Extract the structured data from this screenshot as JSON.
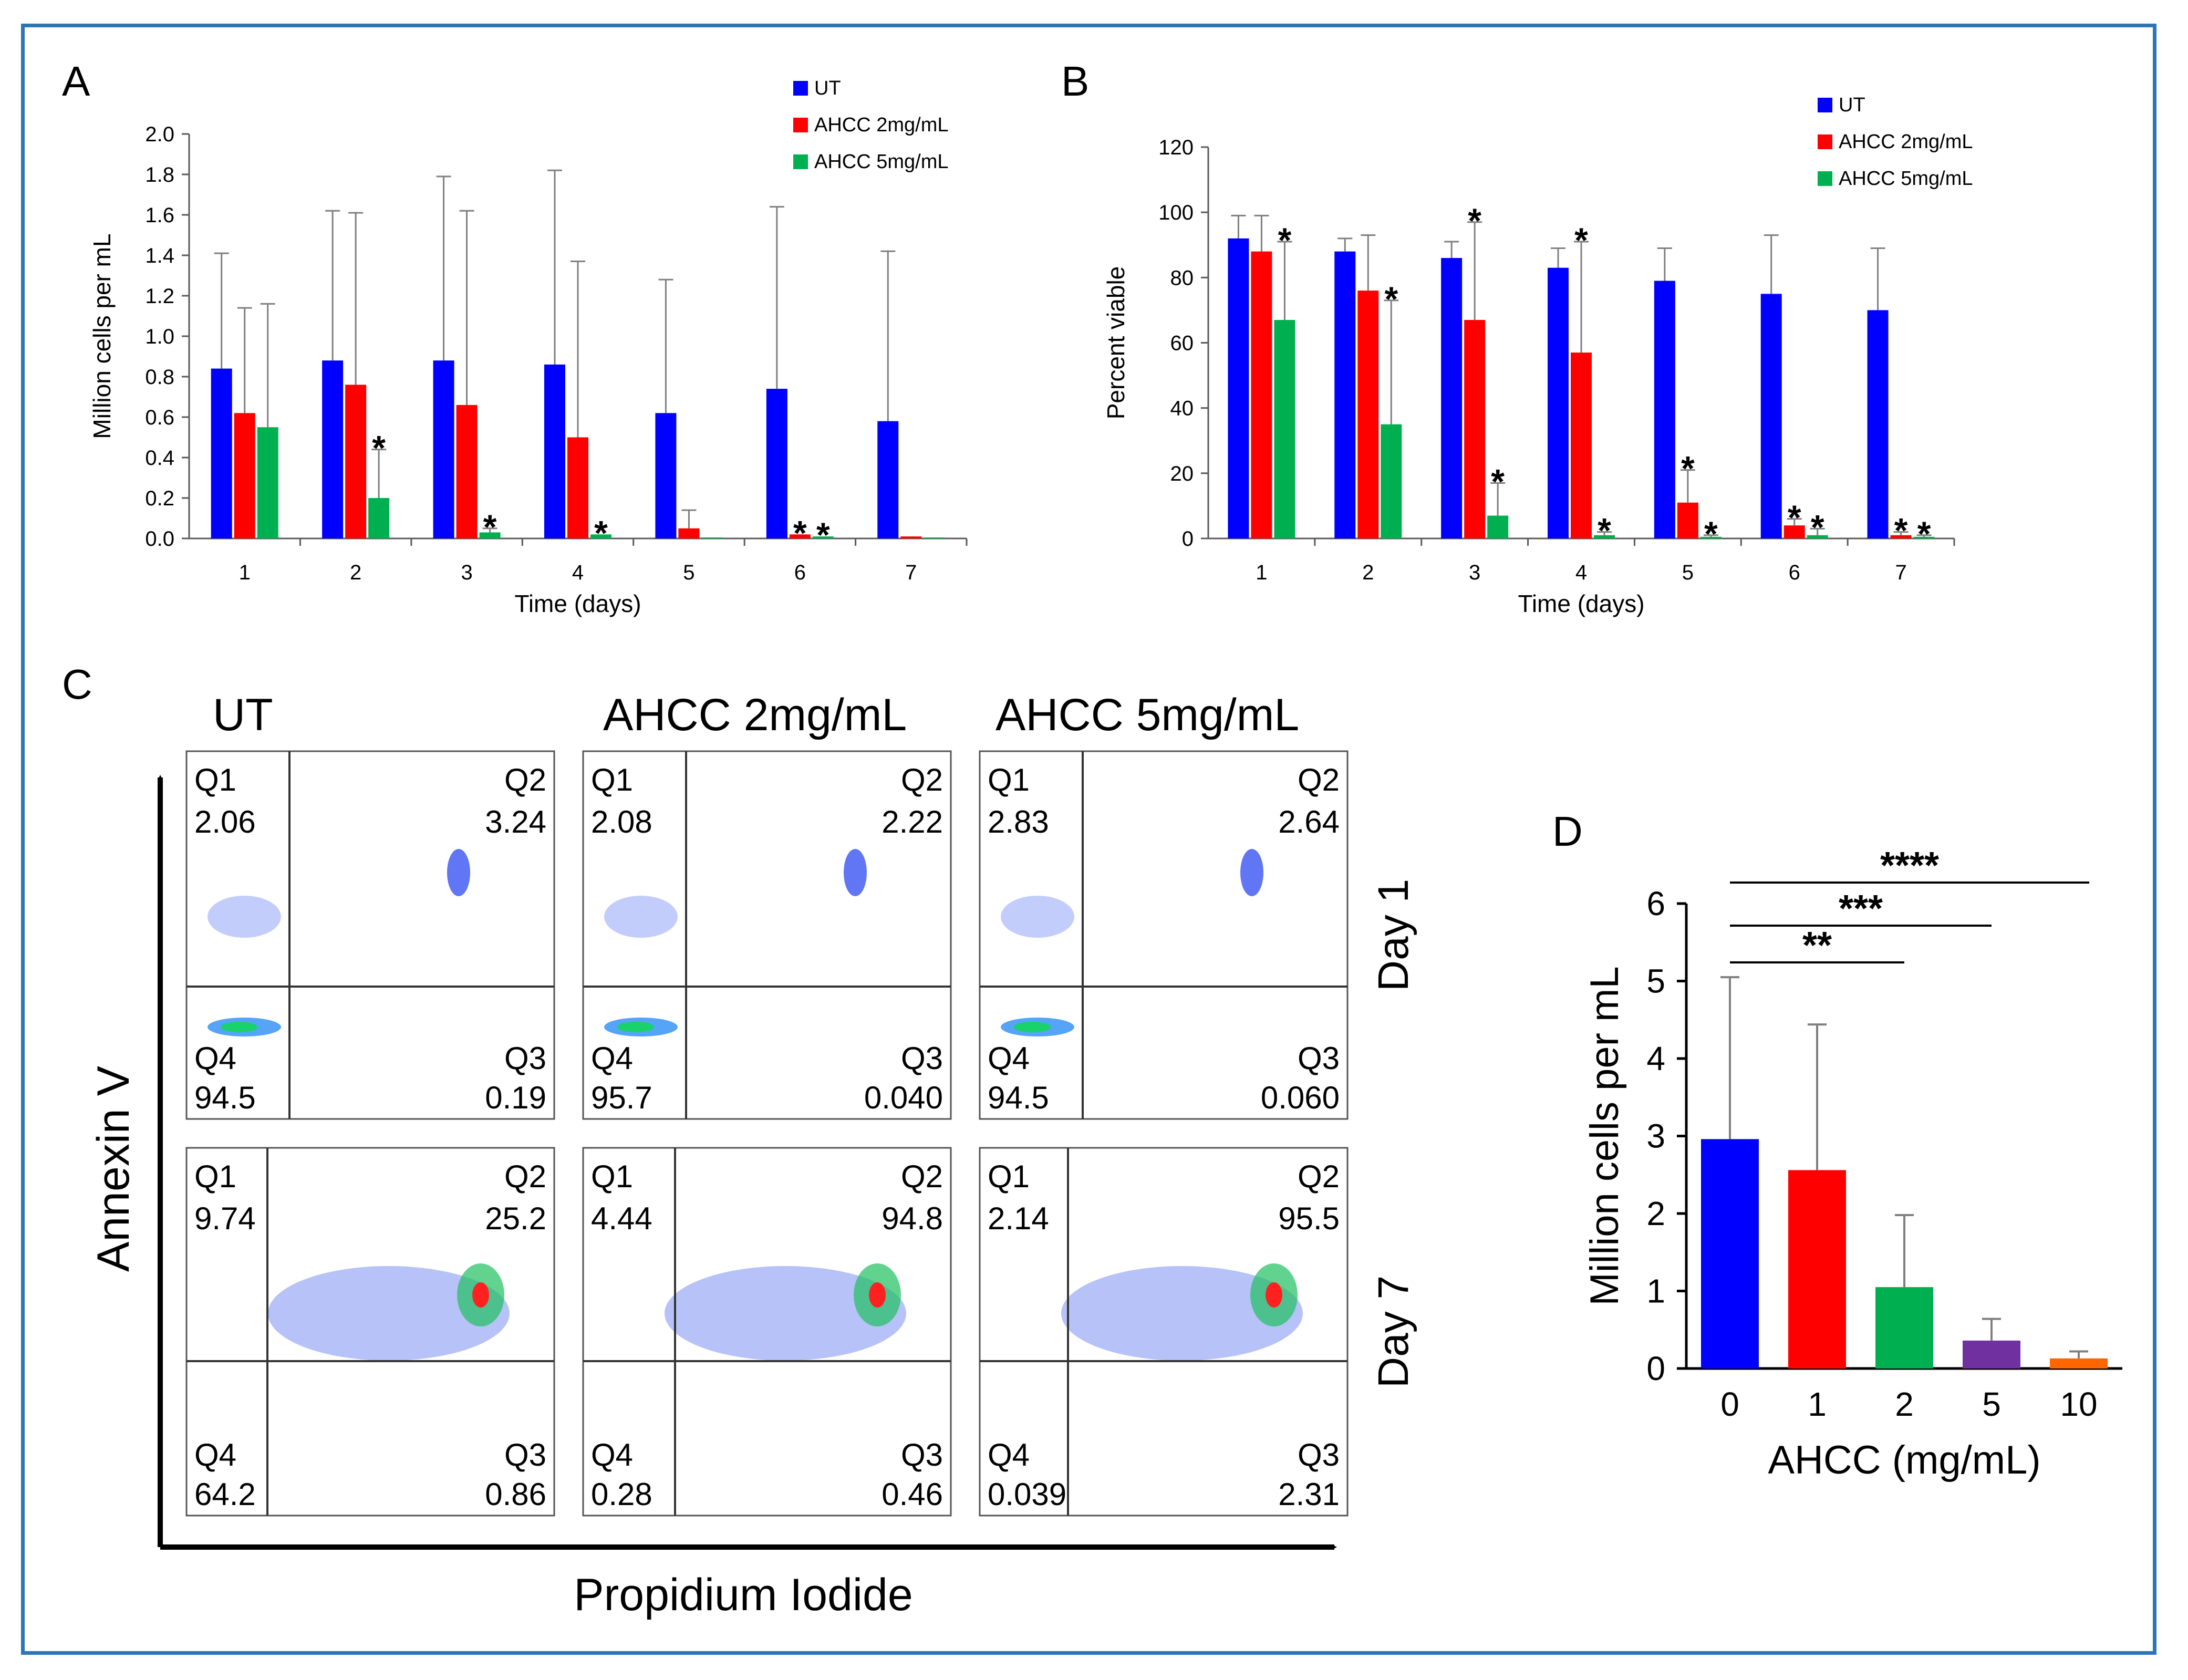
{
  "colors": {
    "ut": "#0000ff",
    "ahcc2": "#ff0000",
    "ahcc5": "#00b050",
    "d_0": "#0000ff",
    "d_1": "#ff0000",
    "d_2": "#00b050",
    "d_5": "#7030a0",
    "d_10": "#ff6600",
    "frame": "#2e75b6"
  },
  "panel_labels": {
    "a": "A",
    "b": "B",
    "c": "C",
    "d": "D"
  },
  "chart_data": [
    {
      "id": "A",
      "type": "bar",
      "categories": [
        "1",
        "2",
        "3",
        "4",
        "5",
        "6",
        "7"
      ],
      "xlabel": "Time (days)",
      "ylabel": "Million cells per mL",
      "ylim": [
        0,
        2.0
      ],
      "yticks": [
        "0.0",
        "0.2",
        "0.4",
        "0.6",
        "0.8",
        "1.0",
        "1.2",
        "1.4",
        "1.6",
        "1.8",
        "2.0"
      ],
      "series": [
        {
          "name": "UT",
          "values": [
            0.84,
            0.88,
            0.88,
            0.86,
            0.62,
            0.74,
            0.58
          ],
          "errors": [
            0.57,
            0.74,
            0.91,
            0.96,
            0.66,
            0.9,
            0.84
          ],
          "stars": [
            "",
            "",
            "",
            "",
            "",
            "",
            ""
          ]
        },
        {
          "name": "AHCC 2mg/mL",
          "values": [
            0.62,
            0.76,
            0.66,
            0.5,
            0.05,
            0.02,
            0.01
          ],
          "errors": [
            0.52,
            0.85,
            0.96,
            0.87,
            0.09,
            0.0,
            0.0
          ],
          "stars": [
            "",
            "",
            "",
            "",
            "",
            "*",
            ""
          ]
        },
        {
          "name": "AHCC 5mg/mL",
          "values": [
            0.55,
            0.2,
            0.03,
            0.02,
            0.005,
            0.01,
            0.005
          ],
          "errors": [
            0.61,
            0.24,
            0.02,
            0.0,
            0.0,
            0.0,
            0.0
          ],
          "stars": [
            "",
            "*",
            "*",
            "*",
            "",
            "*",
            ""
          ]
        }
      ]
    },
    {
      "id": "B",
      "type": "bar",
      "categories": [
        "1",
        "2",
        "3",
        "4",
        "5",
        "6",
        "7"
      ],
      "xlabel": "Time (days)",
      "ylabel": "Percent viable",
      "ylim": [
        0,
        120
      ],
      "yticks": [
        "0",
        "20",
        "40",
        "60",
        "80",
        "100",
        "120"
      ],
      "series": [
        {
          "name": "UT",
          "values": [
            92,
            88,
            86,
            83,
            79,
            75,
            70
          ],
          "errors": [
            7,
            4,
            5,
            6,
            10,
            18,
            19
          ],
          "stars": [
            "",
            "",
            "",
            "",
            "",
            "",
            ""
          ]
        },
        {
          "name": "AHCC 2mg/mL",
          "values": [
            88,
            76,
            67,
            57,
            11,
            4,
            1
          ],
          "errors": [
            11,
            17,
            30,
            34,
            10,
            2,
            1
          ],
          "stars": [
            "",
            "",
            "*",
            "*",
            "*",
            "*",
            "*"
          ]
        },
        {
          "name": "AHCC 5mg/mL",
          "values": [
            67,
            35,
            7,
            1,
            0.5,
            1,
            0.5
          ],
          "errors": [
            24,
            38,
            10,
            1,
            0.5,
            2,
            0.5
          ],
          "stars": [
            "*",
            "*",
            "*",
            "*",
            "*",
            "*",
            "*"
          ]
        }
      ]
    },
    {
      "id": "D",
      "type": "bar",
      "categories": [
        "0",
        "1",
        "2",
        "5",
        "10"
      ],
      "xlabel": "AHCC (mg/mL)",
      "ylabel": "Million cells per mL",
      "ylim": [
        0,
        6
      ],
      "yticks": [
        "0",
        "1",
        "2",
        "3",
        "4",
        "5",
        "6"
      ],
      "values": [
        2.96,
        2.56,
        1.05,
        0.36,
        0.13
      ],
      "errors": [
        2.09,
        1.88,
        0.93,
        0.28,
        0.09
      ],
      "significance": [
        {
          "from": "0",
          "to": "2",
          "label": "**"
        },
        {
          "from": "0",
          "to": "5",
          "label": "***"
        },
        {
          "from": "0",
          "to": "10",
          "label": "****"
        }
      ]
    }
  ],
  "flow": {
    "columns": [
      "UT",
      "AHCC 2mg/mL",
      "AHCC 5mg/mL"
    ],
    "rows": [
      "Day 1",
      "Day 7"
    ],
    "y_axis": "Annexin V",
    "x_axis": "Propidium Iodide",
    "plots": [
      [
        {
          "q1": "2.06",
          "q2": "3.24",
          "q3": "0.19",
          "q4": "94.5"
        },
        {
          "q1": "2.08",
          "q2": "2.22",
          "q3": "0.040",
          "q4": "95.7"
        },
        {
          "q1": "2.83",
          "q2": "2.64",
          "q3": "0.060",
          "q4": "94.5"
        }
      ],
      [
        {
          "q1": "9.74",
          "q2": "25.2",
          "q3": "0.86",
          "q4": "64.2"
        },
        {
          "q1": "4.44",
          "q2": "94.8",
          "q3": "0.46",
          "q4": "0.28"
        },
        {
          "q1": "2.14",
          "q2": "95.5",
          "q3": "2.31",
          "q4": "0.039"
        }
      ]
    ],
    "quadrant_names": {
      "q1": "Q1",
      "q2": "Q2",
      "q3": "Q3",
      "q4": "Q4"
    }
  }
}
